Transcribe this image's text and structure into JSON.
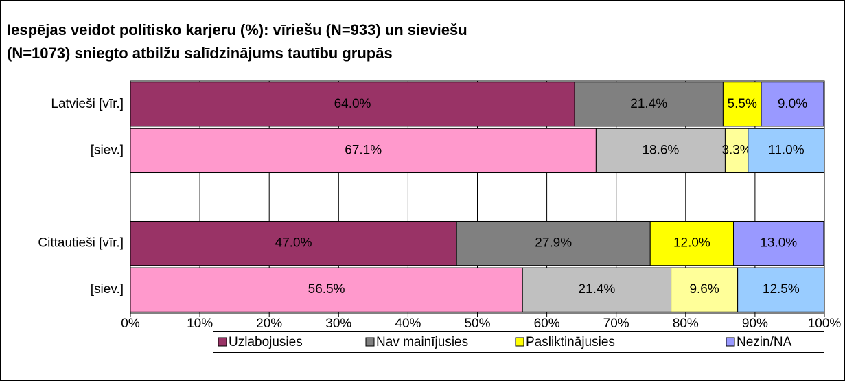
{
  "chart_data": {
    "type": "stacked-bar-horizontal",
    "title": [
      "Iespējas veidot politisko karjeru (%): vīriešu (N=933) un sieviešu",
      "(N=1073)  sniegto atbilžu salīdzinājums tautību grupās"
    ],
    "categories": [
      "Latvieši [vīr.]",
      "[siev.]",
      null,
      "Cittautieši [vīr.]",
      "[siev.]"
    ],
    "series": [
      {
        "name": "Uzlabojusies",
        "color": "#993366",
        "colors": [
          "#993366",
          "#ff99cc",
          null,
          "#993366",
          "#ff99cc"
        ],
        "values": [
          64,
          67.1,
          null,
          47,
          56.5
        ],
        "value_labels": [
          "64.0%",
          "67.1%",
          null,
          "47.0%",
          "56.5%"
        ]
      },
      {
        "name": "Nav mainījusies",
        "color": "#808080",
        "colors": [
          "#808080",
          "#c0c0c0",
          null,
          "#808080",
          "#c0c0c0"
        ],
        "values": [
          21.4,
          18.6,
          null,
          27.9,
          21.4
        ],
        "value_labels": [
          "21.4%",
          "18.6%",
          null,
          "27.9%",
          "21.4%"
        ]
      },
      {
        "name": "Pasliktinājusies",
        "color": "#ffff00",
        "colors": [
          "#ffff00",
          "#ffff99",
          null,
          "#ffff00",
          "#ffff99"
        ],
        "values": [
          5.5,
          3.3,
          null,
          12,
          9.6
        ],
        "value_labels": [
          "5.5%",
          "3.3%",
          null,
          "12.0%",
          "9.6%"
        ]
      },
      {
        "name": "Nezin/NA",
        "color": "#9999ff",
        "colors": [
          "#9999ff",
          "#99ccff",
          null,
          "#9999ff",
          "#99ccff"
        ],
        "values": [
          9,
          11,
          null,
          13,
          12.5
        ],
        "value_labels": [
          "9.0%",
          "11.0%",
          null,
          "13.0%",
          "12.5%"
        ]
      }
    ],
    "xlim": [
      0,
      100
    ],
    "xticks": [
      {
        "value": 0,
        "label": "0%"
      },
      {
        "value": 10,
        "label": "10%"
      },
      {
        "value": 20,
        "label": "20%"
      },
      {
        "value": 30,
        "label": "30%"
      },
      {
        "value": 40,
        "label": "40%"
      },
      {
        "value": 50,
        "label": "50%"
      },
      {
        "value": 60,
        "label": "60%"
      },
      {
        "value": 70,
        "label": "70%"
      },
      {
        "value": 80,
        "label": "80%"
      },
      {
        "value": 90,
        "label": "90%"
      },
      {
        "value": 100,
        "label": "100%"
      }
    ],
    "grid": true,
    "legend": "bottom"
  }
}
